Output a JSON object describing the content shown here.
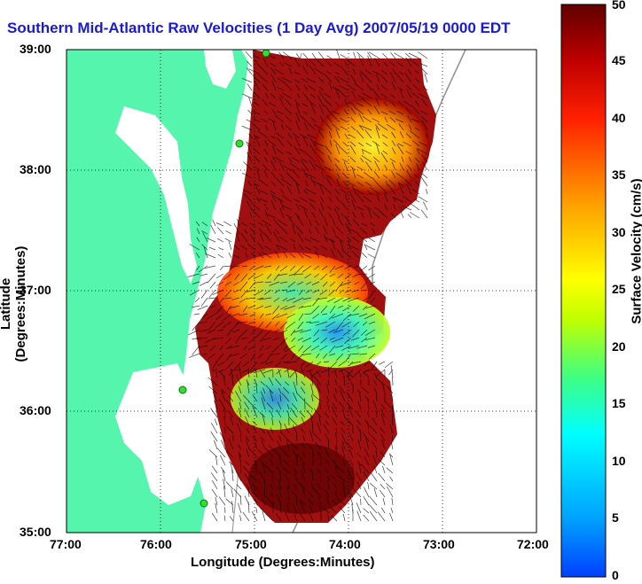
{
  "title": "Southern Mid-Atlantic Raw Velocities (1 Day Avg) 2007/05/19 0000 EDT",
  "x_axis": {
    "label": "Longitude (Degrees:Minutes)",
    "ticks": [
      "77:00",
      "76:00",
      "75:00",
      "74:00",
      "73:00",
      "72:00"
    ]
  },
  "y_axis": {
    "label": "Latitude (Degrees:Minutes)",
    "ticks": [
      "39:00",
      "38:00",
      "37:00",
      "36:00",
      "35:00"
    ]
  },
  "colorbar": {
    "label": "Surface Velocity (cm/s)",
    "ticks": [
      "0",
      "5",
      "10",
      "15",
      "20",
      "25",
      "30",
      "35",
      "40",
      "45",
      "50"
    ],
    "range": [
      0,
      50
    ],
    "colormap": [
      "#0040ff",
      "#00c0ff",
      "#00ffff",
      "#40ff80",
      "#c0ff00",
      "#ffff00",
      "#ffb000",
      "#ff6000",
      "#ff0000",
      "#c00000",
      "#600000"
    ]
  },
  "map": {
    "lon_range": [
      -77,
      -72
    ],
    "lat_range": [
      35,
      39
    ],
    "land_color": "#55f5ad",
    "grid": "dotted"
  }
}
